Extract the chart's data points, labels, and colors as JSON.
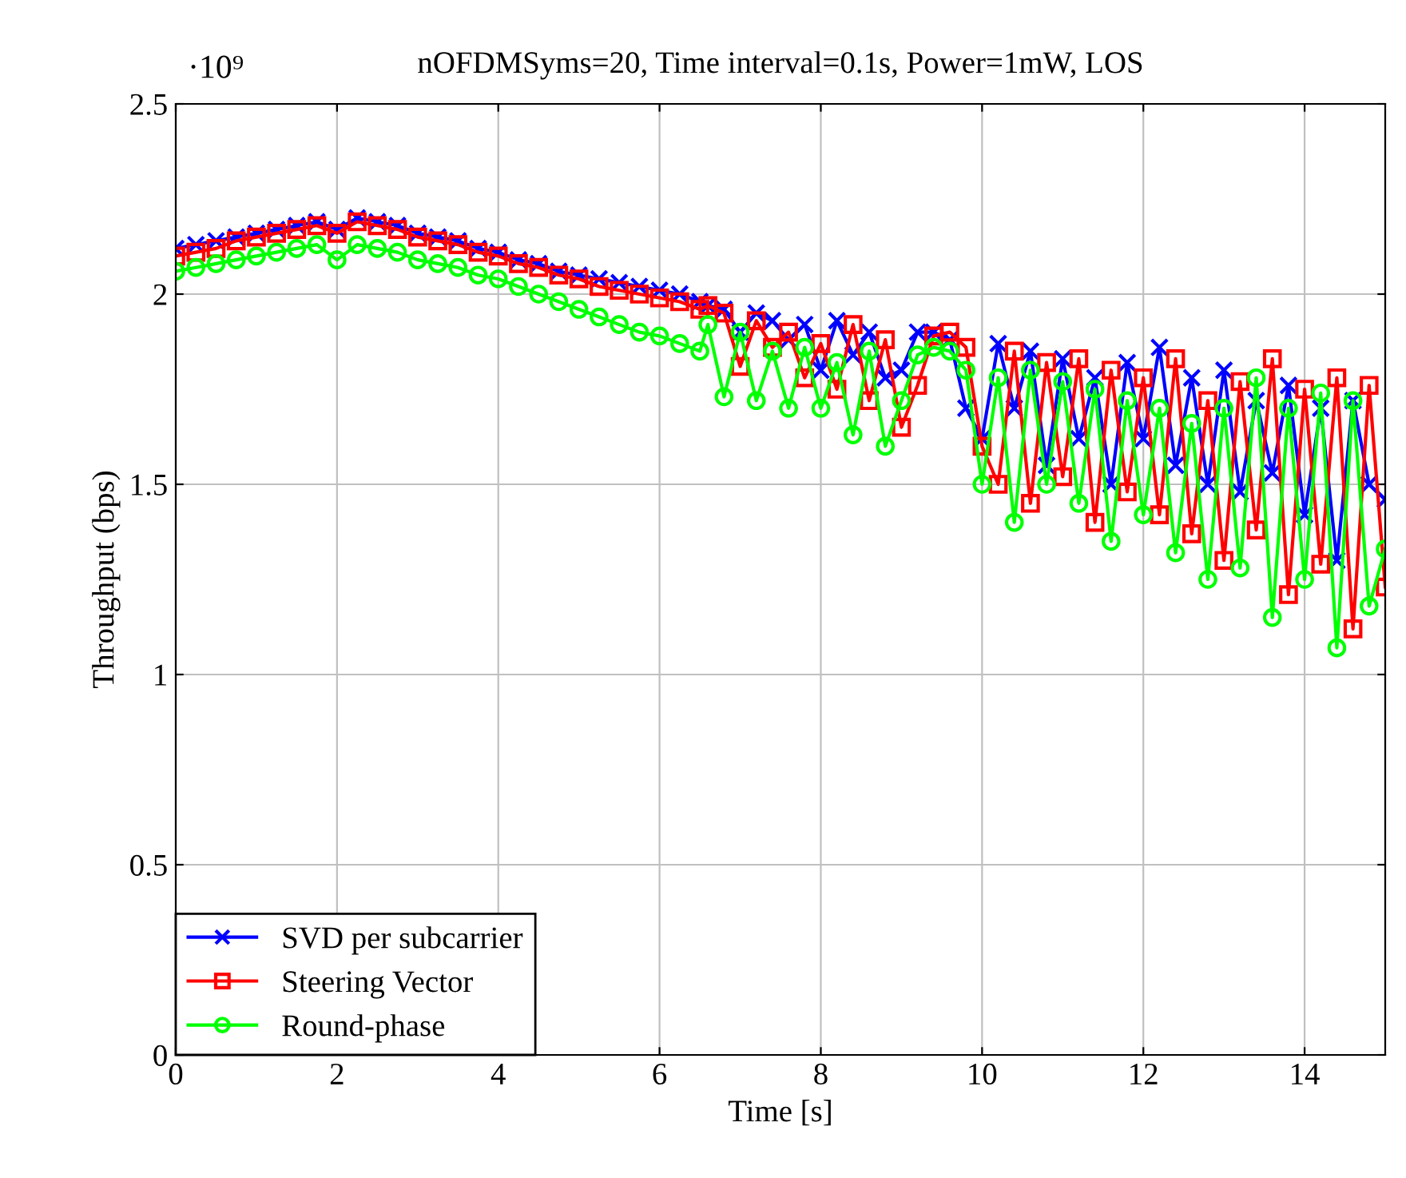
{
  "chart_data": {
    "type": "line",
    "title": "nOFDMSyms=20, Time interval=0.1s, Power=1mW, LOS",
    "xlabel": "Time [s]",
    "ylabel": "Throughput (bps)",
    "annotations": [
      "·10⁹"
    ],
    "x": [
      0,
      0.25,
      0.5,
      0.75,
      1,
      1.25,
      1.5,
      1.75,
      2,
      2.25,
      2.5,
      2.75,
      3,
      3.25,
      3.5,
      3.75,
      4,
      4.25,
      4.5,
      4.75,
      5,
      5.25,
      5.5,
      5.75,
      6,
      6.25,
      6.5,
      6.6,
      6.8,
      7,
      7.2,
      7.4,
      7.6,
      7.8,
      8,
      8.2,
      8.4,
      8.6,
      8.8,
      9,
      9.2,
      9.4,
      9.6,
      9.8,
      10,
      10.2,
      10.4,
      10.6,
      10.8,
      11,
      11.2,
      11.4,
      11.6,
      11.8,
      12,
      12.2,
      12.4,
      12.6,
      12.8,
      13,
      13.2,
      13.4,
      13.6,
      13.8,
      14,
      14.2,
      14.4,
      14.6,
      14.8,
      15
    ],
    "series": [
      {
        "name": "SVD per subcarrier",
        "color": "#0000ff",
        "marker": "cross",
        "values": [
          2.12,
          2.13,
          2.14,
          2.15,
          2.16,
          2.17,
          2.18,
          2.19,
          2.17,
          2.2,
          2.19,
          2.18,
          2.16,
          2.15,
          2.14,
          2.12,
          2.11,
          2.09,
          2.08,
          2.06,
          2.05,
          2.04,
          2.03,
          2.02,
          2.01,
          2.0,
          1.98,
          1.97,
          1.96,
          1.9,
          1.95,
          1.93,
          1.88,
          1.92,
          1.8,
          1.93,
          1.84,
          1.9,
          1.78,
          1.8,
          1.9,
          1.9,
          1.88,
          1.7,
          1.62,
          1.87,
          1.7,
          1.85,
          1.55,
          1.83,
          1.62,
          1.78,
          1.5,
          1.82,
          1.62,
          1.86,
          1.55,
          1.78,
          1.5,
          1.8,
          1.48,
          1.72,
          1.53,
          1.76,
          1.42,
          1.7,
          1.3,
          1.72,
          1.5,
          1.46
        ]
      },
      {
        "name": "Steering Vector",
        "color": "#ff0000",
        "marker": "square",
        "values": [
          2.1,
          2.11,
          2.12,
          2.14,
          2.15,
          2.16,
          2.17,
          2.18,
          2.16,
          2.19,
          2.18,
          2.17,
          2.15,
          2.14,
          2.13,
          2.11,
          2.1,
          2.08,
          2.07,
          2.05,
          2.04,
          2.02,
          2.01,
          2.0,
          1.99,
          1.98,
          1.96,
          1.97,
          1.95,
          1.81,
          1.93,
          1.86,
          1.9,
          1.78,
          1.87,
          1.75,
          1.92,
          1.72,
          1.88,
          1.65,
          1.76,
          1.89,
          1.9,
          1.86,
          1.6,
          1.5,
          1.85,
          1.45,
          1.82,
          1.52,
          1.83,
          1.4,
          1.8,
          1.48,
          1.78,
          1.42,
          1.83,
          1.37,
          1.72,
          1.3,
          1.77,
          1.38,
          1.83,
          1.21,
          1.75,
          1.29,
          1.78,
          1.12,
          1.76,
          1.23
        ]
      },
      {
        "name": "Round-phase",
        "color": "#00ff00",
        "marker": "circle",
        "values": [
          2.06,
          2.07,
          2.08,
          2.09,
          2.1,
          2.11,
          2.12,
          2.13,
          2.09,
          2.13,
          2.12,
          2.11,
          2.09,
          2.08,
          2.07,
          2.05,
          2.04,
          2.02,
          2.0,
          1.98,
          1.96,
          1.94,
          1.92,
          1.9,
          1.89,
          1.87,
          1.85,
          1.92,
          1.73,
          1.9,
          1.72,
          1.85,
          1.7,
          1.86,
          1.7,
          1.82,
          1.63,
          1.85,
          1.6,
          1.72,
          1.84,
          1.86,
          1.85,
          1.8,
          1.5,
          1.78,
          1.4,
          1.8,
          1.5,
          1.77,
          1.45,
          1.75,
          1.35,
          1.72,
          1.42,
          1.7,
          1.32,
          1.66,
          1.25,
          1.7,
          1.28,
          1.78,
          1.15,
          1.7,
          1.25,
          1.74,
          1.07,
          1.72,
          1.18,
          1.33
        ]
      }
    ],
    "xlim": [
      0,
      15
    ],
    "xticks": [
      0,
      2,
      4,
      6,
      8,
      10,
      12,
      14
    ],
    "ylim": [
      0,
      2.5
    ],
    "yticks": [
      0,
      0.5,
      1,
      1.5,
      2,
      2.5
    ],
    "grid": true,
    "legend": "bottom left",
    "line_style": "solid"
  }
}
